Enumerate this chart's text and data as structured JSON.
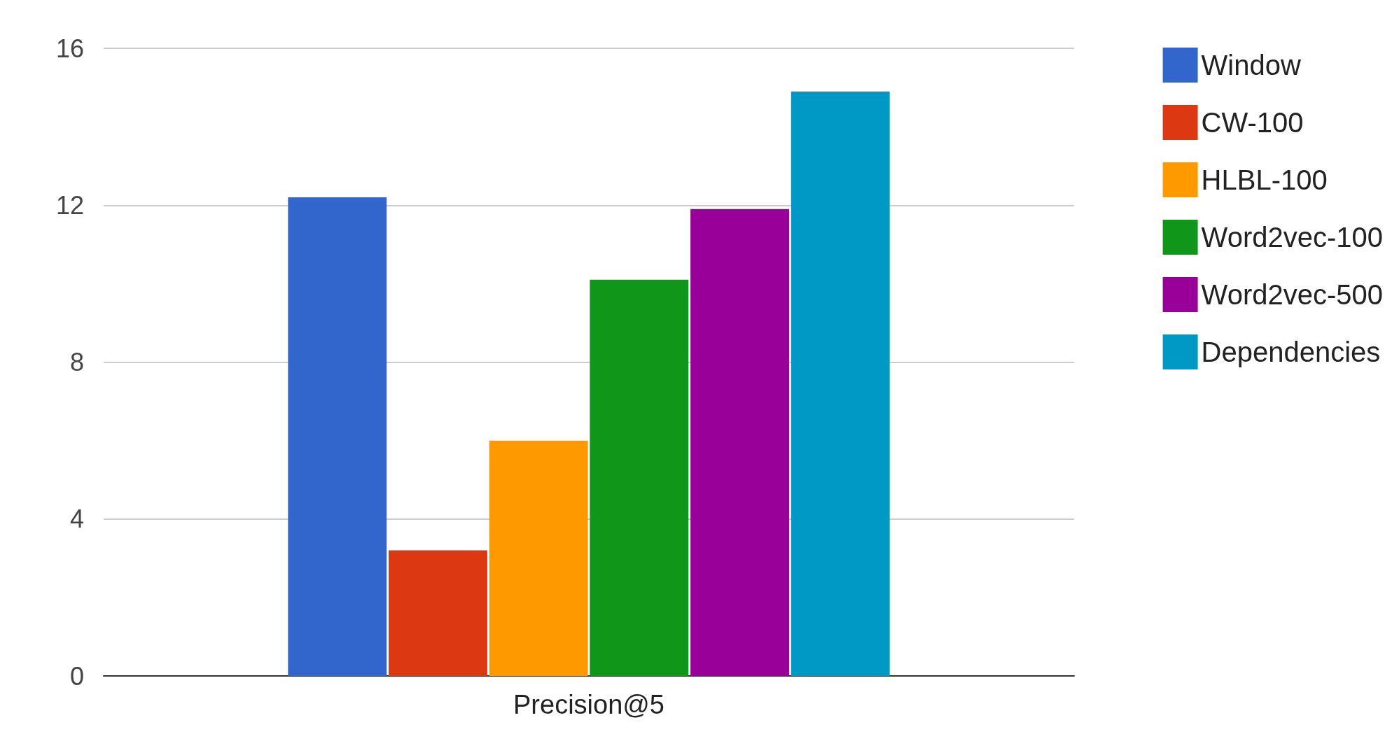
{
  "chart_data": {
    "type": "bar",
    "categories": [
      "Precision@5"
    ],
    "series": [
      {
        "name": "Window",
        "color": "#3366cc",
        "values": [
          12.2
        ]
      },
      {
        "name": "CW-100",
        "color": "#dc3912",
        "values": [
          3.2
        ]
      },
      {
        "name": "HLBL-100",
        "color": "#ff9900",
        "values": [
          6.0
        ]
      },
      {
        "name": "Word2vec-100",
        "color": "#109618",
        "values": [
          10.1
        ]
      },
      {
        "name": "Word2vec-500",
        "color": "#990099",
        "values": [
          11.9
        ]
      },
      {
        "name": "Dependencies",
        "color": "#0099c6",
        "values": [
          14.9
        ]
      }
    ],
    "ylim": [
      0,
      16
    ],
    "yticks": [
      0,
      4,
      8,
      12,
      16
    ],
    "grid": "y",
    "legend": "top right"
  }
}
